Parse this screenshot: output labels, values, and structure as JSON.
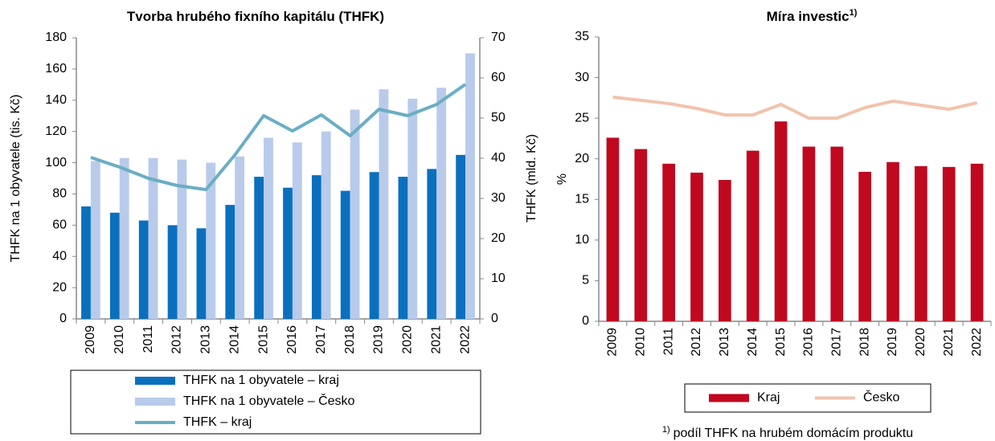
{
  "chart_data": [
    {
      "type": "bar",
      "title": "Tvorba hrubého fixního kapitálu (THFK)",
      "y_label": "THFK na 1 obyvatele (tis. Kč)",
      "y2_label": "THFK (mld. Kč)",
      "categories": [
        "2009",
        "2010",
        "2011",
        "2012",
        "2013",
        "2014",
        "2015",
        "2016",
        "2017",
        "2018",
        "2019",
        "2020",
        "2021",
        "2022"
      ],
      "series": [
        {
          "name": "THFK na 1 obyvatele – kraj",
          "type": "bar",
          "color": "#0a70be",
          "values": [
            72,
            68,
            63,
            60,
            58,
            73,
            91,
            84,
            92,
            82,
            94,
            91,
            96,
            105
          ]
        },
        {
          "name": "THFK na 1 obyvatele – Česko",
          "type": "bar",
          "color": "#b8cbeb",
          "values": [
            101,
            103,
            103,
            102,
            100,
            104,
            116,
            113,
            120,
            134,
            147,
            141,
            148,
            170
          ]
        },
        {
          "name": "THFK – kraj",
          "type": "line",
          "axis": "y2",
          "color": "#6aaec4",
          "values": [
            40.2,
            37.8,
            35,
            33.2,
            32.2,
            40.8,
            50.6,
            46.8,
            50.8,
            45.6,
            52.2,
            50.6,
            53.4,
            58.4
          ]
        }
      ],
      "ylim": [
        0,
        180
      ],
      "yticks": [
        0,
        20,
        40,
        60,
        80,
        100,
        120,
        140,
        160,
        180
      ],
      "y2lim": [
        0,
        70
      ],
      "y2ticks": [
        0,
        10,
        20,
        30,
        40,
        50,
        60,
        70
      ],
      "grid": false,
      "legend": "bottom"
    },
    {
      "type": "bar",
      "title": "Míra investic",
      "title_superscript": "1)",
      "y_label": "%",
      "categories": [
        "2009",
        "2010",
        "2011",
        "2012",
        "2013",
        "2014",
        "2015",
        "2016",
        "2017",
        "2018",
        "2019",
        "2020",
        "2021",
        "2022"
      ],
      "series": [
        {
          "name": "Kraj",
          "type": "bar",
          "color": "#c0081f",
          "values": [
            22.6,
            21.2,
            19.4,
            18.3,
            17.4,
            21,
            24.6,
            21.5,
            21.5,
            18.4,
            19.6,
            19.1,
            19,
            19.4
          ]
        },
        {
          "name": "Česko",
          "type": "line",
          "color": "#f2c3ad",
          "values": [
            27.6,
            27.2,
            26.8,
            26.2,
            25.4,
            25.4,
            26.7,
            25,
            25,
            26.3,
            27.1,
            26.6,
            26.1,
            26.9
          ]
        }
      ],
      "ylim": [
        0,
        35
      ],
      "yticks": [
        0,
        5,
        10,
        15,
        20,
        25,
        30,
        35
      ],
      "grid": false,
      "legend": "bottom",
      "footnote_marker": "1)",
      "footnote": "podíl THFK na hrubém domácím produktu"
    }
  ]
}
